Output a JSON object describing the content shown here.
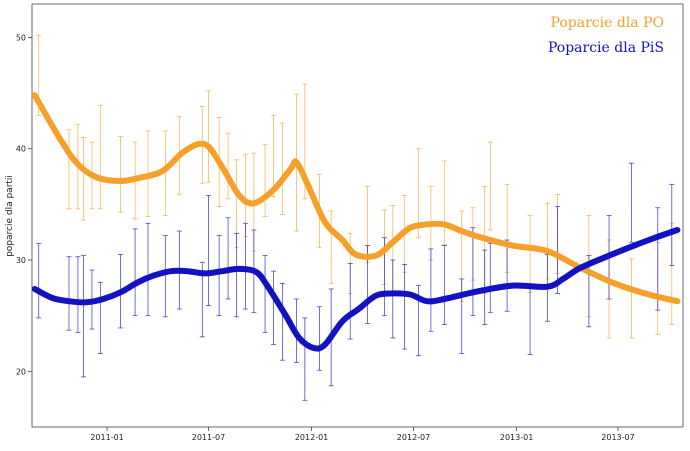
{
  "chart_data": {
    "type": "line",
    "ylabel": "poparcie dla partii",
    "xlabel": "",
    "ylim": [
      15,
      53
    ],
    "xlim": [
      "2010-08-20",
      "2013-10-25"
    ],
    "x_ticks": [
      {
        "date": "2011-01-01",
        "label": "2011-01"
      },
      {
        "date": "2011-07-01",
        "label": "2011-07"
      },
      {
        "date": "2012-01-01",
        "label": "2012-01"
      },
      {
        "date": "2012-07-01",
        "label": "2012-07"
      },
      {
        "date": "2013-01-01",
        "label": "2013-01"
      },
      {
        "date": "2013-07-01",
        "label": "2013-07"
      }
    ],
    "y_ticks": [
      20,
      30,
      40,
      50
    ],
    "grid": false,
    "legend_position": "top-right",
    "series": [
      {
        "name": "Poparcie dla PO",
        "color": "#f5a02a",
        "trend": [
          [
            "2010-08-25",
            44.8
          ],
          [
            "2010-10-10",
            40.8
          ],
          [
            "2010-11-10",
            38.6
          ],
          [
            "2010-12-15",
            37.4
          ],
          [
            "2011-01-25",
            37.1
          ],
          [
            "2011-03-01",
            37.4
          ],
          [
            "2011-04-10",
            38.0
          ],
          [
            "2011-05-20",
            39.8
          ],
          [
            "2011-06-25",
            40.4
          ],
          [
            "2011-07-25",
            38.4
          ],
          [
            "2011-08-25",
            35.8
          ],
          [
            "2011-09-20",
            35.1
          ],
          [
            "2011-10-25",
            36.3
          ],
          [
            "2011-11-25",
            38.2
          ],
          [
            "2011-12-05",
            38.8
          ],
          [
            "2011-12-25",
            36.8
          ],
          [
            "2012-01-25",
            33.4
          ],
          [
            "2012-02-25",
            31.8
          ],
          [
            "2012-03-20",
            30.5
          ],
          [
            "2012-04-25",
            30.4
          ],
          [
            "2012-05-25",
            31.6
          ],
          [
            "2012-06-25",
            32.9
          ],
          [
            "2012-07-25",
            33.2
          ],
          [
            "2012-08-25",
            33.2
          ],
          [
            "2012-09-25",
            32.6
          ],
          [
            "2012-10-25",
            32.1
          ],
          [
            "2012-12-25",
            31.3
          ],
          [
            "2013-02-25",
            30.8
          ],
          [
            "2013-04-25",
            29.3
          ],
          [
            "2013-06-25",
            27.9
          ],
          [
            "2013-08-25",
            26.9
          ],
          [
            "2013-10-15",
            26.3
          ]
        ],
        "points": [
          [
            "2010-09-01",
            46.5,
            43.0,
            50.2
          ],
          [
            "2010-10-25",
            38.0,
            34.6,
            41.7
          ],
          [
            "2010-11-10",
            38.0,
            34.6,
            42.2
          ],
          [
            "2010-11-20",
            37.5,
            33.6,
            41.0
          ],
          [
            "2010-12-05",
            37.0,
            34.6,
            40.6
          ],
          [
            "2010-12-20",
            38.2,
            34.6,
            43.9
          ],
          [
            "2011-01-25",
            37.5,
            34.3,
            41.1
          ],
          [
            "2011-02-20",
            36.5,
            33.7,
            40.6
          ],
          [
            "2011-03-15",
            37.4,
            33.9,
            41.6
          ],
          [
            "2011-04-15",
            37.5,
            34.0,
            41.6
          ],
          [
            "2011-05-10",
            39.0,
            35.9,
            42.9
          ],
          [
            "2011-06-20",
            40.6,
            36.9,
            43.8
          ],
          [
            "2011-07-01",
            40.6,
            37.0,
            45.2
          ],
          [
            "2011-07-20",
            38.5,
            34.8,
            42.8
          ],
          [
            "2011-08-05",
            38.5,
            35.5,
            41.4
          ],
          [
            "2011-08-20",
            35.5,
            31.1,
            39.0
          ],
          [
            "2011-09-05",
            35.8,
            32.1,
            39.5
          ],
          [
            "2011-09-20",
            35.5,
            30.8,
            39.6
          ],
          [
            "2011-10-10",
            36.5,
            33.9,
            40.4
          ],
          [
            "2011-10-25",
            39.4,
            35.7,
            43.0
          ],
          [
            "2011-11-10",
            38.0,
            34.1,
            42.3
          ],
          [
            "2011-12-05",
            39.4,
            32.6,
            44.9
          ],
          [
            "2011-12-20",
            40.0,
            35.5,
            45.8
          ],
          [
            "2012-01-15",
            34.0,
            31.1,
            37.7
          ],
          [
            "2012-02-05",
            30.8,
            27.9,
            34.4
          ],
          [
            "2012-03-10",
            30.5,
            27.0,
            32.4
          ],
          [
            "2012-04-10",
            32.8,
            29.8,
            36.6
          ],
          [
            "2012-05-10",
            30.9,
            27.8,
            34.5
          ],
          [
            "2012-05-25",
            30.8,
            27.0,
            34.9
          ],
          [
            "2012-06-15",
            31.6,
            28.9,
            35.8
          ],
          [
            "2012-07-10",
            35.5,
            32.0,
            40.0
          ],
          [
            "2012-08-01",
            33.0,
            30.0,
            36.6
          ],
          [
            "2012-08-25",
            35.5,
            31.4,
            38.9
          ],
          [
            "2012-09-25",
            30.0,
            26.3,
            34.4
          ],
          [
            "2012-10-15",
            31.3,
            28.2,
            34.7
          ],
          [
            "2012-11-05",
            32.0,
            27.0,
            36.6
          ],
          [
            "2012-11-15",
            36.5,
            32.7,
            40.6
          ],
          [
            "2012-12-15",
            32.5,
            28.9,
            36.8
          ],
          [
            "2013-01-25",
            30.5,
            27.1,
            34.0
          ],
          [
            "2013-02-25",
            31.8,
            28.3,
            35.1
          ],
          [
            "2013-03-15",
            32.5,
            28.8,
            35.9
          ],
          [
            "2013-05-10",
            29.5,
            24.9,
            34.0
          ],
          [
            "2013-06-15",
            27.5,
            23.0,
            31.8
          ],
          [
            "2013-07-25",
            26.5,
            23.0,
            30.1
          ],
          [
            "2013-09-10",
            27.5,
            23.3,
            31.6
          ],
          [
            "2013-10-05",
            29.0,
            24.2,
            33.3
          ]
        ]
      },
      {
        "name": "Poparcie dla PiS",
        "color": "#1212c0",
        "trend": [
          [
            "2010-08-25",
            27.4
          ],
          [
            "2010-09-25",
            26.6
          ],
          [
            "2010-10-25",
            26.3
          ],
          [
            "2010-11-25",
            26.2
          ],
          [
            "2010-12-25",
            26.5
          ],
          [
            "2011-01-25",
            27.1
          ],
          [
            "2011-02-25",
            28.0
          ],
          [
            "2011-03-25",
            28.6
          ],
          [
            "2011-04-25",
            29.0
          ],
          [
            "2011-05-25",
            29.0
          ],
          [
            "2011-06-25",
            28.8
          ],
          [
            "2011-07-25",
            29.0
          ],
          [
            "2011-08-25",
            29.2
          ],
          [
            "2011-09-25",
            28.9
          ],
          [
            "2011-10-15",
            27.6
          ],
          [
            "2011-11-15",
            25.1
          ],
          [
            "2011-12-10",
            23.0
          ],
          [
            "2012-01-05",
            22.1
          ],
          [
            "2012-01-25",
            22.4
          ],
          [
            "2012-02-25",
            24.5
          ],
          [
            "2012-03-25",
            25.6
          ],
          [
            "2012-04-25",
            26.8
          ],
          [
            "2012-05-25",
            27.0
          ],
          [
            "2012-06-25",
            26.9
          ],
          [
            "2012-07-25",
            26.3
          ],
          [
            "2012-08-25",
            26.5
          ],
          [
            "2012-10-25",
            27.2
          ],
          [
            "2012-12-25",
            27.7
          ],
          [
            "2013-02-25",
            27.6
          ],
          [
            "2013-03-25",
            28.3
          ],
          [
            "2013-04-25",
            29.3
          ],
          [
            "2013-06-25",
            30.6
          ],
          [
            "2013-08-25",
            31.8
          ],
          [
            "2013-10-15",
            32.7
          ]
        ],
        "points": [
          [
            "2010-09-01",
            28.0,
            24.8,
            31.5
          ],
          [
            "2010-10-25",
            27.0,
            23.7,
            30.3
          ],
          [
            "2010-11-10",
            27.0,
            23.5,
            30.3
          ],
          [
            "2010-11-20",
            25.5,
            19.5,
            30.4
          ],
          [
            "2010-12-05",
            26.5,
            23.8,
            29.1
          ],
          [
            "2010-12-20",
            24.8,
            21.6,
            28.0
          ],
          [
            "2011-01-25",
            27.2,
            23.9,
            30.5
          ],
          [
            "2011-02-20",
            28.5,
            25.0,
            32.8
          ],
          [
            "2011-03-15",
            29.0,
            25.0,
            33.3
          ],
          [
            "2011-04-15",
            28.5,
            24.9,
            32.2
          ],
          [
            "2011-05-10",
            29.0,
            25.6,
            32.6
          ],
          [
            "2011-06-20",
            26.5,
            23.1,
            29.8
          ],
          [
            "2011-07-01",
            30.5,
            25.9,
            35.8
          ],
          [
            "2011-07-20",
            28.5,
            25.0,
            32.2
          ],
          [
            "2011-08-05",
            30.0,
            26.5,
            33.8
          ],
          [
            "2011-08-20",
            28.5,
            24.9,
            32.4
          ],
          [
            "2011-09-05",
            29.5,
            25.6,
            33.3
          ],
          [
            "2011-09-20",
            29.0,
            25.3,
            32.7
          ],
          [
            "2011-10-10",
            26.8,
            23.5,
            30.4
          ],
          [
            "2011-10-25",
            25.5,
            22.4,
            29.0
          ],
          [
            "2011-11-10",
            24.5,
            21.0,
            27.9
          ],
          [
            "2011-12-05",
            23.5,
            20.8,
            26.5
          ],
          [
            "2011-12-20",
            22.0,
            17.4,
            24.8
          ],
          [
            "2012-01-15",
            23.5,
            20.1,
            25.8
          ],
          [
            "2012-02-05",
            24.0,
            18.7,
            27.4
          ],
          [
            "2012-03-10",
            26.5,
            22.9,
            29.7
          ],
          [
            "2012-04-10",
            27.5,
            24.3,
            31.3
          ],
          [
            "2012-05-10",
            28.0,
            25.0,
            32.0
          ],
          [
            "2012-05-25",
            26.5,
            23.0,
            30.0
          ],
          [
            "2012-06-15",
            26.0,
            22.0,
            29.6
          ],
          [
            "2012-07-10",
            24.5,
            21.4,
            27.7
          ],
          [
            "2012-08-01",
            27.0,
            23.6,
            31.0
          ],
          [
            "2012-08-25",
            28.0,
            24.2,
            31.3
          ],
          [
            "2012-09-25",
            25.0,
            21.6,
            28.3
          ],
          [
            "2012-10-15",
            29.5,
            25.0,
            32.9
          ],
          [
            "2012-11-05",
            27.5,
            24.2,
            30.9
          ],
          [
            "2012-11-15",
            28.0,
            25.3,
            31.5
          ],
          [
            "2012-12-15",
            28.5,
            25.4,
            31.8
          ],
          [
            "2013-01-25",
            24.5,
            21.5,
            27.8
          ],
          [
            "2013-02-25",
            27.5,
            24.5,
            30.5
          ],
          [
            "2013-03-15",
            31.0,
            27.0,
            34.8
          ],
          [
            "2013-05-10",
            26.5,
            24.0,
            30.4
          ],
          [
            "2013-06-15",
            30.5,
            26.5,
            34.0
          ],
          [
            "2013-07-25",
            35.0,
            31.6,
            38.7
          ],
          [
            "2013-09-10",
            30.0,
            25.5,
            34.7
          ],
          [
            "2013-10-05",
            33.0,
            29.5,
            36.8
          ]
        ]
      }
    ]
  }
}
